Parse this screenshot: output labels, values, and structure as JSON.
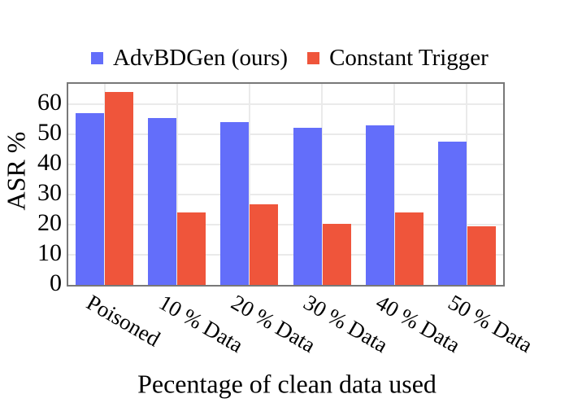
{
  "figure": {
    "y_axis_title": "ASR %",
    "x_axis_title": "Pecentage of clean data used",
    "background_color": "#ffffff",
    "gridline_color": "#eaeaea",
    "axis_border_color": "#787878"
  },
  "legend": {
    "items": [
      {
        "label": "AdvBDGen (ours)",
        "color": "#636EFA"
      },
      {
        "label": "Constant Trigger",
        "color": "#EF553B"
      }
    ]
  },
  "chart_data": {
    "type": "bar",
    "title": "",
    "categories": [
      "Poisoned",
      "10 % Data",
      "20 % Data",
      "30 % Data",
      "40 % Data",
      "50 % Data"
    ],
    "series": [
      {
        "name": "AdvBDGen (ours)",
        "color": "#636EFA",
        "values": [
          57,
          55.5,
          54,
          52.2,
          53,
          47.5
        ]
      },
      {
        "name": "Constant Trigger",
        "color": "#EF553B",
        "values": [
          64,
          24.1,
          26.9,
          20.3,
          24.2,
          19.6
        ]
      }
    ],
    "xlabel": "Pecentage of clean data used",
    "ylabel": "ASR %",
    "ylim": [
      0,
      66.8
    ],
    "yticks": [
      0,
      10,
      20,
      30,
      40,
      50,
      60
    ],
    "grid": true,
    "legend_position": "top-center"
  }
}
